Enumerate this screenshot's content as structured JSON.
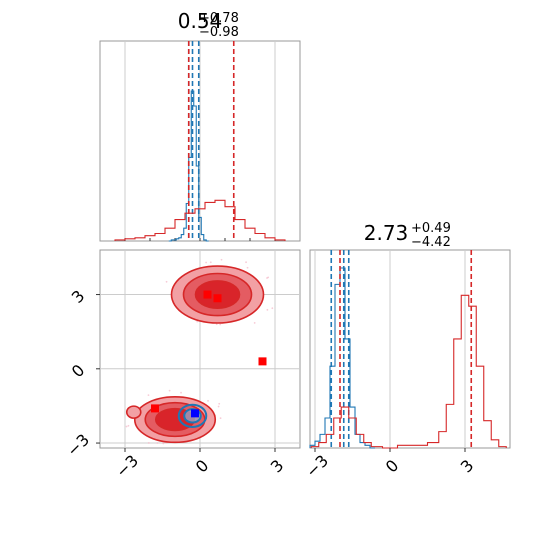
{
  "chart_data": [
    {
      "type": "histogram",
      "title_value": "0.54",
      "title_plus": "+0.78",
      "title_minus": "−0.98",
      "xlim": [
        -4,
        4
      ],
      "series": [
        {
          "color": "#1f77b4",
          "bins": [
            -1.2,
            -1.1,
            -1.0,
            -0.9,
            -0.8,
            -0.7,
            -0.6,
            -0.5,
            -0.4,
            -0.3,
            -0.2,
            -0.1,
            0.0,
            0.1,
            0.2,
            0.3
          ],
          "weights": [
            0,
            1,
            1,
            2,
            3,
            6,
            12,
            35,
            78,
            140,
            126,
            70,
            22,
            6,
            1,
            0
          ],
          "vlines": [
            -0.45,
            -0.3,
            -0.05
          ]
        },
        {
          "color": "#d62728",
          "bins": [
            -3.2,
            -2.8,
            -2.4,
            -2.0,
            -1.6,
            -1.2,
            -0.8,
            -0.4,
            0.0,
            0.4,
            0.8,
            1.2,
            1.6,
            2.0,
            2.4,
            2.8,
            3.2
          ],
          "weights": [
            1,
            2,
            3,
            5,
            7,
            12,
            20,
            26,
            30,
            36,
            38,
            32,
            20,
            12,
            7,
            3,
            1
          ],
          "vlines": [
            -0.45,
            1.35
          ]
        }
      ]
    },
    {
      "type": "histogram",
      "title_value": "2.73",
      "title_plus": "+0.49",
      "title_minus": "−4.42",
      "xlim": [
        -3.2,
        4.8
      ],
      "xticks": [
        "−3",
        "0",
        "3"
      ],
      "series": [
        {
          "color": "#1f77b4",
          "bins": [
            -3.1,
            -2.9,
            -2.7,
            -2.5,
            -2.3,
            -2.1,
            -1.9,
            -1.7,
            -1.5,
            -1.3,
            -1.1,
            -0.9,
            -0.7
          ],
          "weights": [
            2,
            5,
            10,
            22,
            60,
            120,
            132,
            80,
            30,
            10,
            4,
            2,
            0
          ],
          "vlines": [
            -2.35,
            -1.85,
            -1.65
          ]
        },
        {
          "color": "#d62728",
          "bins": [
            -3.0,
            -2.7,
            -2.4,
            -2.1,
            -1.8,
            -1.5,
            -1.2,
            -0.9,
            -0.6,
            0.0,
            0.6,
            1.2,
            1.8,
            2.1,
            2.4,
            2.7,
            3.0,
            3.3,
            3.6,
            3.9,
            4.2,
            4.5
          ],
          "weights": [
            1,
            4,
            10,
            22,
            30,
            22,
            10,
            4,
            1,
            0,
            2,
            2,
            4,
            12,
            32,
            80,
            112,
            104,
            60,
            20,
            6,
            1
          ],
          "vlines": [
            -2.0,
            3.25
          ]
        }
      ]
    },
    {
      "type": "contour",
      "xlim": [
        -4,
        4
      ],
      "ylim": [
        -3.2,
        4.8
      ],
      "xticks": [
        "−3",
        "0",
        "3"
      ],
      "yticks": [
        "−3",
        "0",
        "3"
      ],
      "red_modes": [
        {
          "cx": 0.7,
          "cy": 3.0,
          "rx": 1.6,
          "ry": 1.0
        },
        {
          "cx": -1.0,
          "cy": -2.05,
          "rx": 1.4,
          "ry": 0.8
        }
      ],
      "blue_mode": {
        "cx": -0.3,
        "cy": -1.9,
        "rx": 0.55,
        "ry": 0.45
      },
      "red_markers": [
        {
          "x": 0.3,
          "y": 3.0
        },
        {
          "x": 0.7,
          "y": 2.85
        },
        {
          "x": 2.5,
          "y": 0.3
        },
        {
          "x": -1.8,
          "y": -1.6
        }
      ],
      "blue_marker": {
        "x": -0.2,
        "y": -1.8
      },
      "colors": {
        "red": "#d62728",
        "blue": "#1f77b4",
        "red_marker": "#ff0000",
        "blue_marker": "#0000ff"
      }
    }
  ]
}
